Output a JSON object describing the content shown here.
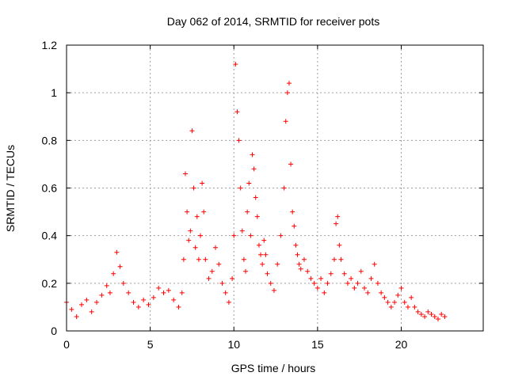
{
  "chart_data": {
    "type": "scatter",
    "title": "Day 062 of 2014, SRMTID for receiver pots",
    "xlabel": "GPS time / hours",
    "ylabel": "SRMTID / TECUs",
    "xlim": [
      0,
      24.9
    ],
    "ylim": [
      0,
      1.2
    ],
    "xticks": [
      0,
      5,
      10,
      15,
      20
    ],
    "xtick_labels": [
      "0",
      "5",
      "10",
      "15",
      "20"
    ],
    "yticks": [
      0,
      0.2,
      0.4,
      0.6,
      0.8,
      1,
      1.2
    ],
    "ytick_labels": [
      "0",
      "0.2",
      "0.4",
      "0.6",
      "0.8",
      "1",
      "1.2"
    ],
    "grid": true,
    "marker": "+",
    "color": "#ff0000",
    "series": [
      {
        "name": "SRMTID",
        "x": [
          0.0,
          0.3,
          0.6,
          0.9,
          1.2,
          1.5,
          1.8,
          2.1,
          2.4,
          2.6,
          2.8,
          3.0,
          3.2,
          3.4,
          3.7,
          4.0,
          4.3,
          4.6,
          4.9,
          5.2,
          5.5,
          5.8,
          6.1,
          6.4,
          6.7,
          6.9,
          7.0,
          7.1,
          7.2,
          7.3,
          7.4,
          7.5,
          7.6,
          7.7,
          7.8,
          7.9,
          8.0,
          8.1,
          8.2,
          8.3,
          8.5,
          8.7,
          8.9,
          9.1,
          9.3,
          9.5,
          9.7,
          9.9,
          10.0,
          10.1,
          10.2,
          10.3,
          10.4,
          10.5,
          10.6,
          10.7,
          10.8,
          10.9,
          11.0,
          11.1,
          11.2,
          11.3,
          11.4,
          11.5,
          11.6,
          11.7,
          11.8,
          11.9,
          12.0,
          12.2,
          12.4,
          12.6,
          12.8,
          13.0,
          13.1,
          13.2,
          13.3,
          13.4,
          13.5,
          13.6,
          13.7,
          13.8,
          13.9,
          14.0,
          14.2,
          14.4,
          14.6,
          14.8,
          15.0,
          15.2,
          15.4,
          15.6,
          15.8,
          16.0,
          16.1,
          16.2,
          16.3,
          16.4,
          16.6,
          16.8,
          17.0,
          17.2,
          17.4,
          17.6,
          17.8,
          18.0,
          18.2,
          18.4,
          18.6,
          18.8,
          19.0,
          19.2,
          19.4,
          19.6,
          19.8,
          20.0,
          20.2,
          20.4,
          20.6,
          20.8,
          21.0,
          21.2,
          21.4,
          21.6,
          21.8,
          22.0,
          22.2,
          22.4,
          22.6
        ],
        "y": [
          0.12,
          0.09,
          0.06,
          0.11,
          0.13,
          0.08,
          0.12,
          0.15,
          0.19,
          0.16,
          0.24,
          0.33,
          0.27,
          0.2,
          0.16,
          0.12,
          0.1,
          0.13,
          0.11,
          0.14,
          0.18,
          0.16,
          0.17,
          0.13,
          0.1,
          0.16,
          0.3,
          0.66,
          0.5,
          0.38,
          0.42,
          0.84,
          0.6,
          0.35,
          0.48,
          0.3,
          0.4,
          0.62,
          0.5,
          0.3,
          0.22,
          0.25,
          0.35,
          0.28,
          0.2,
          0.16,
          0.12,
          0.22,
          0.4,
          1.12,
          0.92,
          0.8,
          0.6,
          0.42,
          0.3,
          0.25,
          0.5,
          0.62,
          0.4,
          0.74,
          0.68,
          0.56,
          0.48,
          0.36,
          0.32,
          0.28,
          0.38,
          0.32,
          0.24,
          0.2,
          0.17,
          0.28,
          0.4,
          0.6,
          0.88,
          1.0,
          1.04,
          0.7,
          0.5,
          0.44,
          0.36,
          0.32,
          0.28,
          0.26,
          0.3,
          0.25,
          0.22,
          0.2,
          0.18,
          0.22,
          0.16,
          0.2,
          0.24,
          0.3,
          0.45,
          0.48,
          0.36,
          0.3,
          0.24,
          0.2,
          0.22,
          0.18,
          0.2,
          0.25,
          0.18,
          0.16,
          0.22,
          0.28,
          0.2,
          0.16,
          0.14,
          0.12,
          0.1,
          0.12,
          0.15,
          0.18,
          0.12,
          0.1,
          0.14,
          0.1,
          0.08,
          0.07,
          0.06,
          0.08,
          0.07,
          0.06,
          0.05,
          0.07,
          0.06
        ]
      }
    ]
  }
}
